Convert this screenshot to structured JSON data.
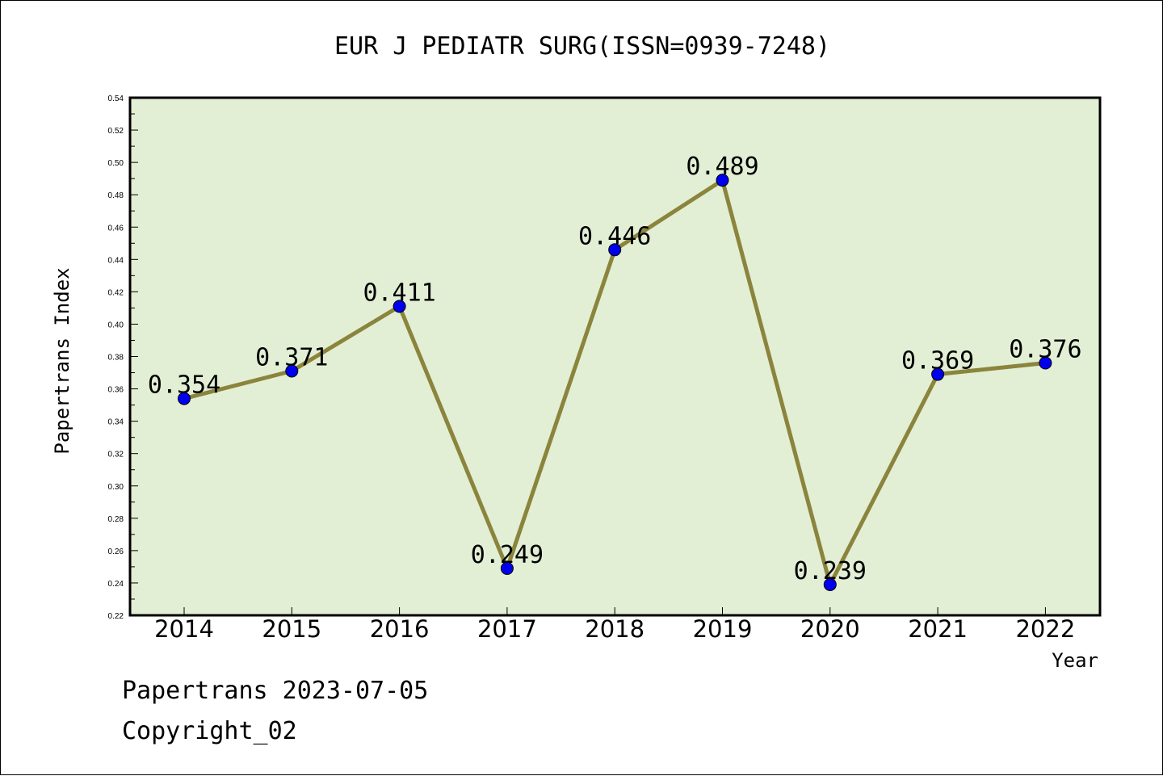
{
  "chart_data": {
    "type": "line",
    "title": "EUR J PEDIATR SURG(ISSN=0939-7248)",
    "xlabel": "Year",
    "ylabel": "Papertrans Index",
    "categories": [
      "2014",
      "2015",
      "2016",
      "2017",
      "2018",
      "2019",
      "2020",
      "2021",
      "2022"
    ],
    "series": [
      {
        "values": [
          0.354,
          0.371,
          0.411,
          0.249,
          0.446,
          0.489,
          0.239,
          0.369,
          0.376
        ]
      }
    ],
    "data_labels": [
      "0.354",
      "0.371",
      "0.411",
      "0.249",
      "0.446",
      "0.489",
      "0.239",
      "0.369",
      "0.376"
    ],
    "ylim": [
      0.22,
      0.54
    ],
    "yticks": [
      "0.22",
      "0.24",
      "0.26",
      "0.28",
      "0.30",
      "0.32",
      "0.34",
      "0.36",
      "0.38",
      "0.40",
      "0.42",
      "0.44",
      "0.46",
      "0.48",
      "0.50",
      "0.52",
      "0.54"
    ],
    "grid": false,
    "colors": {
      "plot_background": "#e2efd5",
      "line": "#8b843c",
      "marker": "#0000ee"
    }
  },
  "footer": {
    "line1": "Papertrans 2023-07-05",
    "line2": "Copyright_02"
  }
}
